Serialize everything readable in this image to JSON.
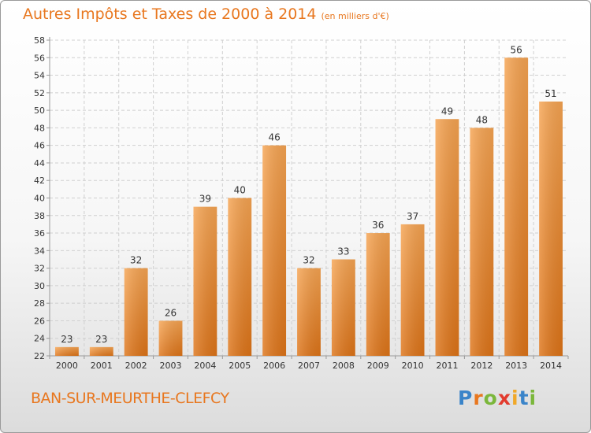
{
  "chart_data": {
    "type": "bar",
    "title": "Autres Impôts et Taxes de 2000 à 2014",
    "subtitle": "(en milliers d'€)",
    "categories": [
      "2000",
      "2001",
      "2002",
      "2003",
      "2004",
      "2005",
      "2006",
      "2007",
      "2008",
      "2009",
      "2010",
      "2011",
      "2012",
      "2013",
      "2014"
    ],
    "values": [
      23,
      23,
      32,
      26,
      39,
      40,
      46,
      32,
      33,
      36,
      37,
      49,
      48,
      56,
      51
    ],
    "data_labels": [
      "23",
      "23",
      "32",
      "26",
      "39",
      "40",
      "46",
      "32",
      "33",
      "36",
      "37",
      "49",
      "48",
      "56",
      "51"
    ],
    "ylim": [
      22,
      58
    ],
    "yticks": [
      22,
      24,
      26,
      28,
      30,
      32,
      34,
      36,
      38,
      40,
      42,
      44,
      46,
      48,
      50,
      52,
      54,
      56,
      58
    ],
    "xlabel": "",
    "ylabel": "",
    "grid": true,
    "bar_color": "#f0963d"
  },
  "footer": {
    "commune": "BAN-SUR-MEURTHE-CLEFCY",
    "logo_text": "Proxiti",
    "logo_letters": [
      "P",
      "r",
      "o",
      "x",
      "i",
      "t",
      "i"
    ]
  }
}
